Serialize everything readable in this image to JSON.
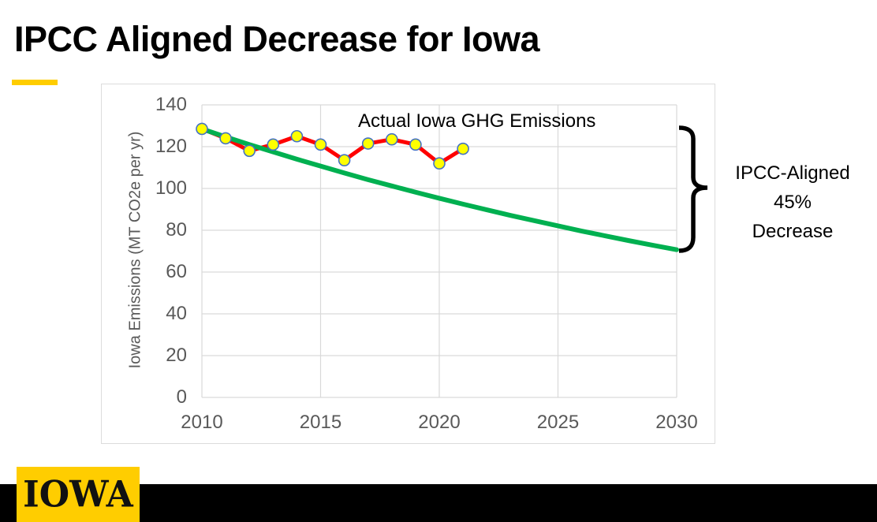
{
  "slide_title": "IPCC Aligned Decrease for Iowa",
  "accent": {
    "gold": "#FFCD00"
  },
  "footer": {
    "logo_text": "IOWA",
    "bar_color": "#000000",
    "logo_bg": "#FFCD00"
  },
  "annotations": {
    "series_label": "Actual Iowa GHG Emissions",
    "bracket_label_lines": [
      "IPCC-Aligned",
      "45%",
      "Decrease"
    ],
    "bracket_color": "#000000"
  },
  "chart_data": {
    "type": "line",
    "title": "",
    "xlabel": "",
    "ylabel": "Iowa Emissions (MT CO2e per yr)",
    "xlim": [
      2010,
      2030
    ],
    "ylim": [
      0,
      140
    ],
    "x_ticks": [
      2010,
      2015,
      2020,
      2025,
      2030
    ],
    "y_ticks": [
      0,
      20,
      40,
      60,
      80,
      100,
      120,
      140
    ],
    "grid": true,
    "legend_position": "none",
    "axis_text_color": "#595959",
    "grid_color": "#D9D9D9",
    "series": [
      {
        "name": "Actual Iowa GHG Emissions",
        "color": "#FF0000",
        "line_width": 5,
        "marker": {
          "shape": "circle",
          "fill": "#FFFF00",
          "stroke": "#4472C4",
          "radius": 7
        },
        "x": [
          2010,
          2011,
          2012,
          2013,
          2014,
          2015,
          2016,
          2017,
          2018,
          2019,
          2020,
          2021
        ],
        "values": [
          128.5,
          124,
          118,
          121,
          125,
          121,
          113.5,
          121.5,
          123.5,
          121,
          112,
          119
        ]
      },
      {
        "name": "IPCC-Aligned 45% Decrease",
        "color": "#00B050",
        "line_width": 6,
        "marker": null,
        "x": [
          2010,
          2011,
          2012,
          2013,
          2014,
          2015,
          2016,
          2017,
          2018,
          2019,
          2020,
          2021,
          2022,
          2023,
          2024,
          2025,
          2026,
          2027,
          2028,
          2029,
          2030
        ],
        "values": [
          128.5,
          124.7,
          121.0,
          117.5,
          114.0,
          110.7,
          107.4,
          104.2,
          101.2,
          98.2,
          95.3,
          92.5,
          89.8,
          87.1,
          84.6,
          82.1,
          79.6,
          77.3,
          75.0,
          72.8,
          70.7
        ]
      }
    ]
  }
}
